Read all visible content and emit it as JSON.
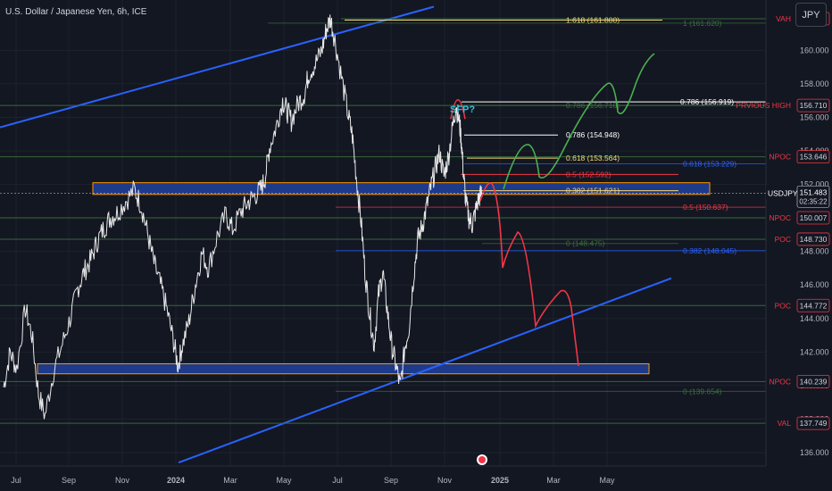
{
  "header": {
    "title": "U.S. Dollar / Japanese Yen, 6h, ICE",
    "currency_button": "JPY"
  },
  "colors": {
    "background": "#131722",
    "price": "#e8e8e8",
    "trend": "#2962ff",
    "zone_fill": "#1e3a8a",
    "zone_border": "#ff9800",
    "gold": "#f7d774",
    "white": "#ffffff",
    "red": "#f23645",
    "green": "#4caf50",
    "blue_fib": "#2962ff",
    "dark_green": "#3c6e3c",
    "dark_red": "#8a2a2a"
  },
  "chart_data": {
    "type": "line",
    "symbol": "USDJPY",
    "ylim": [
      135.2,
      163.0
    ],
    "x_tick_labels": [
      "Jul",
      "Sep",
      "Nov",
      "2024",
      "Mar",
      "May",
      "Jul",
      "Sep",
      "Nov",
      "2025",
      "Mar",
      "May"
    ],
    "y_tick_labels": [
      "136.000",
      "138.000",
      "140.000",
      "142.000",
      "144.000",
      "146.000",
      "148.000",
      "150.000",
      "152.000",
      "154.000",
      "156.000",
      "158.000",
      "160.000"
    ],
    "y_ticks": [
      136,
      138,
      140,
      142,
      144,
      146,
      148,
      150,
      152,
      154,
      156,
      158,
      160
    ],
    "current_price": {
      "label": "USDJPY",
      "value": "151.483",
      "countdown": "02:35:22",
      "price": 151.483
    },
    "right_labels": [
      {
        "text": "VAH",
        "value": "161.882",
        "price": 161.882,
        "color": "#f23645"
      },
      {
        "text": "PRVIOUS HIGH",
        "value": "156.710",
        "price": 156.71,
        "color": "#f23645"
      },
      {
        "text": "NPOC",
        "value": "153.646",
        "price": 153.646,
        "color": "#f23645"
      },
      {
        "text": "NPOC",
        "value": "150.007",
        "price": 150.007,
        "color": "#f23645"
      },
      {
        "text": "POC",
        "value": "148.730",
        "price": 148.73,
        "color": "#f23645"
      },
      {
        "text": "POC",
        "value": "144.772",
        "price": 144.772,
        "color": "#f23645"
      },
      {
        "text": "NPOC",
        "value": "140.239",
        "price": 140.239,
        "color": "#f23645"
      },
      {
        "text": "VAL",
        "value": "137.749",
        "price": 137.749,
        "color": "#f23645"
      }
    ],
    "fib_upper": [
      {
        "label": "1.618 (161.800)",
        "price": 161.8,
        "color": "#f7d774"
      },
      {
        "label": "0.786 (156.919)",
        "price": 156.919,
        "color": "#ffffff"
      },
      {
        "label": "0.786 (154.948)",
        "price": 154.948,
        "color": "#ffffff"
      },
      {
        "label": "0.618 (153.564)",
        "price": 153.564,
        "color": "#f7d774"
      },
      {
        "label": "0.5 (152.592)",
        "price": 152.592,
        "color": "#f23645"
      },
      {
        "label": "0.382 (151.621)",
        "price": 151.621,
        "color": "#f7d774"
      }
    ],
    "fib_lower": [
      {
        "label": "1 (161.620)",
        "price": 161.62,
        "color": "#3c6e3c"
      },
      {
        "label": "0.786 (156.710)",
        "price": 156.71,
        "color": "#3c6e3c"
      },
      {
        "label": "0.618 (153.229)",
        "price": 153.229,
        "color": "#2962ff"
      },
      {
        "label": "0.5 (150.637)",
        "price": 150.637,
        "color": "#f23645"
      },
      {
        "label": "0 (148.475)",
        "price": 148.475,
        "color": "#3c6e3c"
      },
      {
        "label": "0.382 (148.045)",
        "price": 148.045,
        "color": "#2962ff"
      },
      {
        "label": "0 (139.654)",
        "price": 139.654,
        "color": "#3c6e3c"
      }
    ],
    "annotation": "SFP?",
    "zones": [
      {
        "from": 152.1,
        "to": 151.4
      },
      {
        "from": 141.3,
        "to": 140.7
      }
    ],
    "price_path": [
      [
        0,
        139.9
      ],
      [
        0.3,
        142
      ],
      [
        0.6,
        141
      ],
      [
        1,
        144.6
      ],
      [
        1.3,
        143
      ],
      [
        1.6,
        139.5
      ],
      [
        1.9,
        138.2
      ],
      [
        2.3,
        140.9
      ],
      [
        2.7,
        142.5
      ],
      [
        3.1,
        144.2
      ],
      [
        3.4,
        145.8
      ],
      [
        3.7,
        146.8
      ],
      [
        4.0,
        147.5
      ],
      [
        4.3,
        148.6
      ],
      [
        4.6,
        149.4
      ],
      [
        4.9,
        150.0
      ],
      [
        5.2,
        150.3
      ],
      [
        5.6,
        151.0
      ],
      [
        6.0,
        151.7
      ],
      [
        6.3,
        150.8
      ],
      [
        6.6,
        149.1
      ],
      [
        6.9,
        147.3
      ],
      [
        7.2,
        146.0
      ],
      [
        7.5,
        144.5
      ],
      [
        7.8,
        142.6
      ],
      [
        8.0,
        141.2
      ],
      [
        8.2,
        142.4
      ],
      [
        8.5,
        143.8
      ],
      [
        8.8,
        146.0
      ],
      [
        9.1,
        147.9
      ],
      [
        9.4,
        147.0
      ],
      [
        9.8,
        148.9
      ],
      [
        10.2,
        150.2
      ],
      [
        10.5,
        149.3
      ],
      [
        10.9,
        150.4
      ],
      [
        11.2,
        150.9
      ],
      [
        11.5,
        151.3
      ],
      [
        11.8,
        151.7
      ],
      [
        12.0,
        152.4
      ],
      [
        12.2,
        154.2
      ],
      [
        12.5,
        155.4
      ],
      [
        12.8,
        157.0
      ],
      [
        13.0,
        156.4
      ],
      [
        13.2,
        155.8
      ],
      [
        13.5,
        156.8
      ],
      [
        13.8,
        157.4
      ],
      [
        14.0,
        158.6
      ],
      [
        14.3,
        159.2
      ],
      [
        14.6,
        160.0
      ],
      [
        14.8,
        161.2
      ],
      [
        15.0,
        161.9
      ],
      [
        15.2,
        160.6
      ],
      [
        15.5,
        158.4
      ],
      [
        15.8,
        156.2
      ],
      [
        16.0,
        154.9
      ],
      [
        16.2,
        152.2
      ],
      [
        16.4,
        149.8
      ],
      [
        16.6,
        146.5
      ],
      [
        16.8,
        144.2
      ],
      [
        17.0,
        142.4
      ],
      [
        17.2,
        145.4
      ],
      [
        17.4,
        146.8
      ],
      [
        17.6,
        144.5
      ],
      [
        17.8,
        142.4
      ],
      [
        18.0,
        141.2
      ],
      [
        18.2,
        139.9
      ],
      [
        18.4,
        142.2
      ],
      [
        18.6,
        143.5
      ],
      [
        18.8,
        146.4
      ],
      [
        19.0,
        148.7
      ],
      [
        19.2,
        149.5
      ],
      [
        19.4,
        150.6
      ],
      [
        19.6,
        151.8
      ],
      [
        19.8,
        152.9
      ],
      [
        20.0,
        153.9
      ],
      [
        20.2,
        152.5
      ],
      [
        20.4,
        153.6
      ],
      [
        20.6,
        155.4
      ],
      [
        20.75,
        156.7
      ],
      [
        20.9,
        155.8
      ],
      [
        21.0,
        154.6
      ],
      [
        21.1,
        152.6
      ],
      [
        21.2,
        151.0
      ],
      [
        21.35,
        150.0
      ],
      [
        21.5,
        149.6
      ],
      [
        21.65,
        150.4
      ],
      [
        21.8,
        151.2
      ],
      [
        21.95,
        151.5
      ]
    ]
  }
}
